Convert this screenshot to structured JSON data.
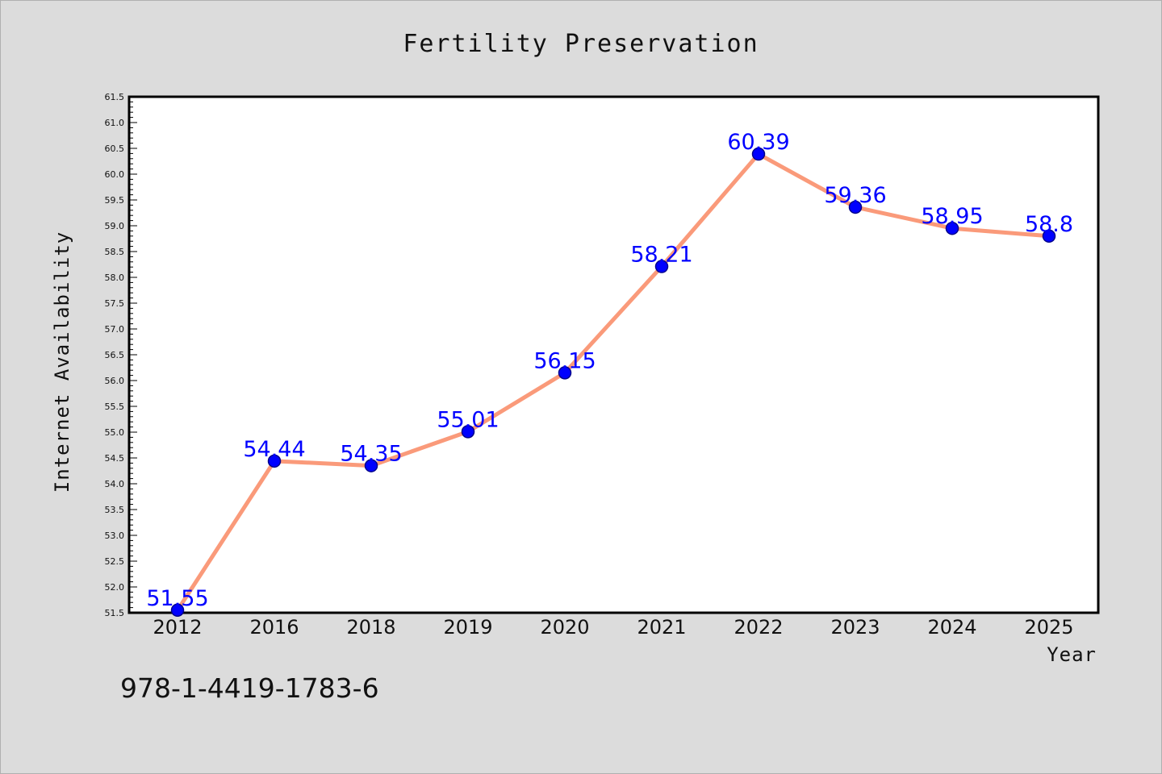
{
  "chart_data": {
    "type": "line",
    "title": "Fertility Preservation",
    "xlabel": "Year",
    "ylabel": "Internet Availability",
    "categories": [
      "2012",
      "2016",
      "2018",
      "2019",
      "2020",
      "2021",
      "2022",
      "2023",
      "2024",
      "2025"
    ],
    "series": [
      {
        "values": [
          51.55,
          54.44,
          54.35,
          55.01,
          56.15,
          58.21,
          60.39,
          59.36,
          58.95,
          58.8
        ],
        "labels": [
          "51.55",
          "54.44",
          "54.35",
          "55.01",
          "56.15",
          "58.21",
          "60.39",
          "59.36",
          "58.95",
          "58.8"
        ]
      }
    ],
    "ylim": [
      51.5,
      61.5
    ],
    "yticks": [
      "51.5",
      "52.0",
      "52.5",
      "53.0",
      "53.5",
      "54.0",
      "54.5",
      "55.0",
      "55.5",
      "56.0",
      "56.5",
      "57.0",
      "57.5",
      "58.0",
      "58.5",
      "59.0",
      "59.5",
      "60.0",
      "60.5",
      "61.0",
      "61.5"
    ],
    "grid": false,
    "colors": {
      "line": "#fa9a7a",
      "marker": "#0000ff",
      "marker_edge": "#00008b",
      "data_label": "#0000ff",
      "background": "#dcdcdc",
      "plot_background": "#ffffff"
    }
  },
  "footer": {
    "isbn": "978-1-4419-1783-6"
  }
}
